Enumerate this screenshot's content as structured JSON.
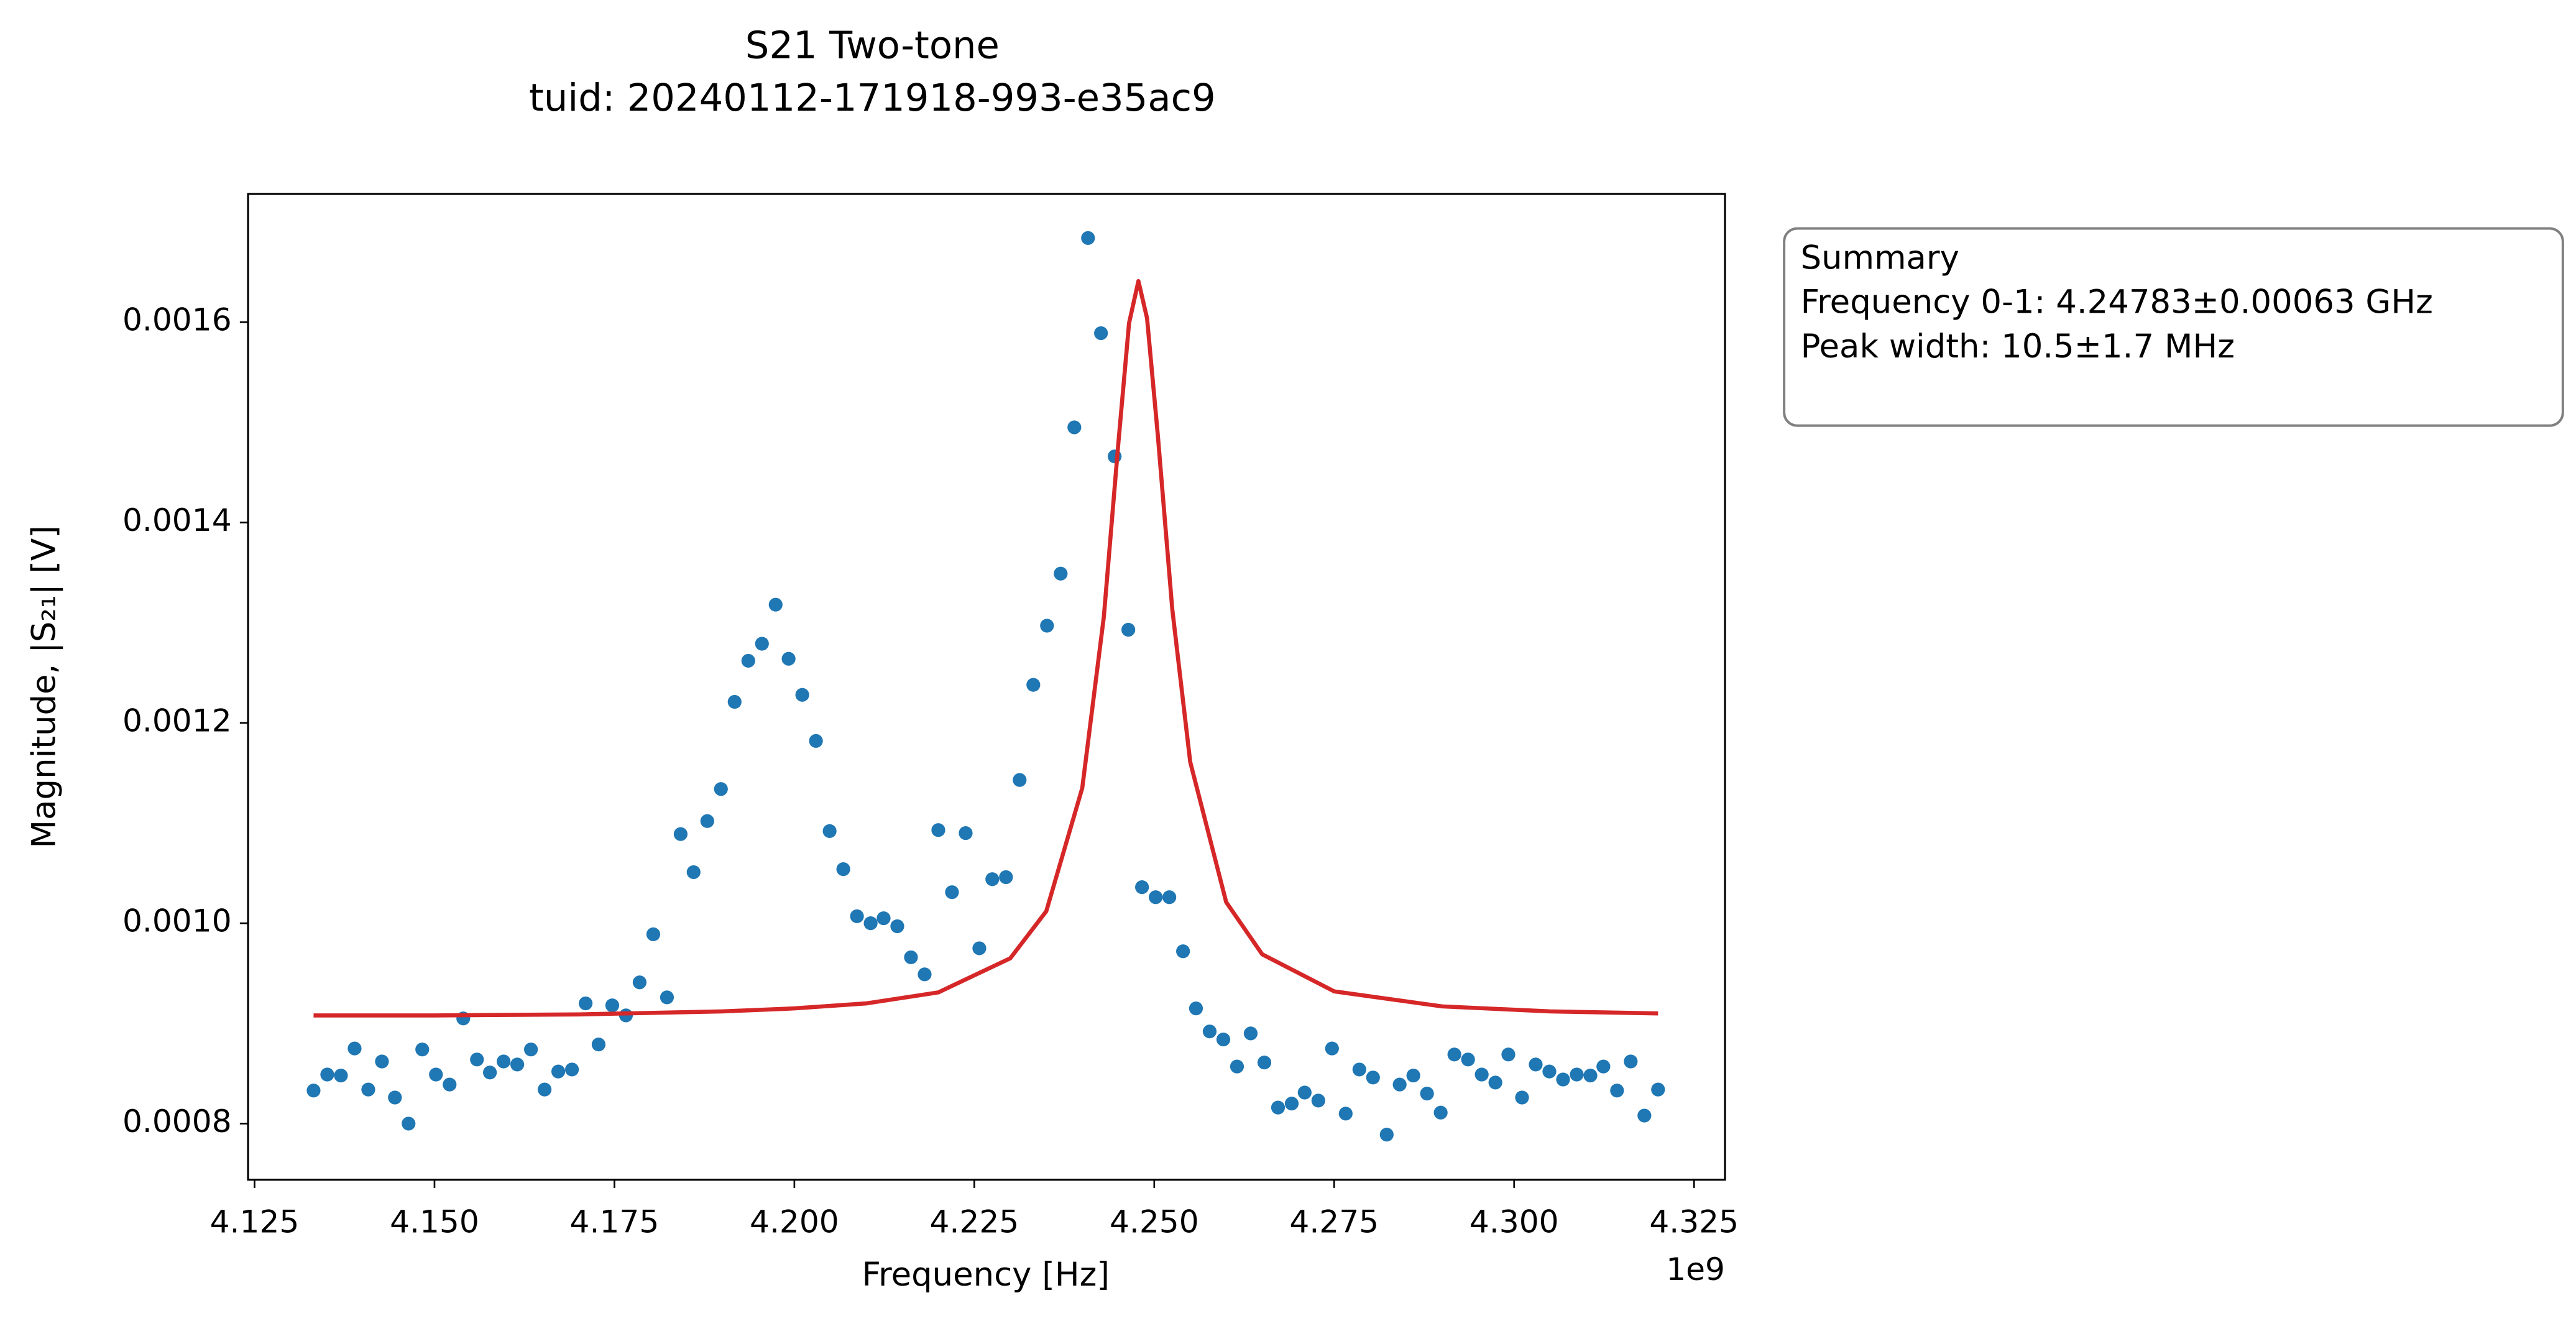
{
  "chart_data": {
    "type": "scatter",
    "title": [
      "S21 Two-tone",
      "tuid: 20240112-171918-993-e35ac9"
    ],
    "x_label": "Frequency [Hz]",
    "y_label": "Magnitude, |S₂₁| [V]",
    "x_offset_label": "1e9",
    "xlim": [
      4.1241,
      4.3293
    ],
    "ylim": [
      0.000744,
      0.001728
    ],
    "xticks": [
      4.125,
      {
        "value": 4.15,
        "label": "4.150"
      },
      4.175,
      {
        "value": 4.2,
        "label": "4.200"
      },
      4.225,
      {
        "value": 4.25,
        "label": "4.250"
      },
      4.275,
      {
        "value": 4.3,
        "label": "4.300"
      },
      4.325
    ],
    "yticks": [
      0.0008,
      {
        "value": 0.001,
        "label": "0.0010"
      },
      0.0012,
      0.0014,
      0.0016
    ],
    "grid": false,
    "x": [
      4.1332,
      4.1351,
      4.137,
      4.1389,
      4.1408,
      4.1427,
      4.1445,
      4.1464,
      4.1483,
      4.1502,
      4.1521,
      4.154,
      4.1559,
      4.1577,
      4.1596,
      4.1615,
      4.1634,
      4.1653,
      4.1672,
      4.1691,
      4.171,
      4.1728,
      4.1747,
      4.1766,
      4.1785,
      4.1804,
      4.1823,
      4.1842,
      4.186,
      4.1879,
      4.1898,
      4.1917,
      4.1936,
      4.1955,
      4.1974,
      4.1992,
      4.2011,
      4.203,
      4.2049,
      4.2068,
      4.2087,
      4.2106,
      4.2124,
      4.2143,
      4.2162,
      4.2181,
      4.22,
      4.2219,
      4.2238,
      4.2257,
      4.2275,
      4.2294,
      4.2313,
      4.2332,
      4.2351,
      4.237,
      4.2389,
      4.2408,
      4.2426,
      4.2445,
      4.2464,
      4.2483,
      4.2502,
      4.2521,
      4.254,
      4.2558,
      4.2577,
      4.2596,
      4.2615,
      4.2634,
      4.2653,
      4.2672,
      4.2691,
      4.2709,
      4.2728,
      4.2747,
      4.2766,
      4.2785,
      4.2804,
      4.2823,
      4.2841,
      4.286,
      4.2879,
      4.2898,
      4.2917,
      4.2936,
      4.2955,
      4.2974,
      4.2992,
      4.3011,
      4.303,
      4.3049,
      4.3068,
      4.3087,
      4.3106,
      4.3124,
      4.3143,
      4.3162,
      4.3181,
      4.32
    ],
    "series": [
      {
        "type": "scatter",
        "color": "#1f77b4",
        "values": [
          0.000833,
          0.000849,
          0.000848,
          0.000875,
          0.000834,
          0.000862,
          0.000826,
          0.0008,
          0.000874,
          0.000849,
          0.000839,
          0.000905,
          0.000864,
          0.000851,
          0.000862,
          0.000859,
          0.000874,
          0.000834,
          0.000852,
          0.000854,
          0.00092,
          0.000879,
          0.000918,
          0.000908,
          0.000941,
          0.000989,
          0.000926,
          0.001089,
          0.001051,
          0.001102,
          0.001134,
          0.001221,
          0.001262,
          0.001279,
          0.001318,
          0.001264,
          0.001228,
          0.001182,
          0.001092,
          0.001054,
          0.001007,
          0.001,
          0.001005,
          0.000997,
          0.000966,
          0.000949,
          0.001093,
          0.001031,
          0.00109,
          0.000975,
          0.001044,
          0.001046,
          0.001143,
          0.001238,
          0.001297,
          0.001349,
          0.001495,
          0.001684,
          0.001589,
          0.001466,
          0.001293,
          0.001036,
          0.001026,
          0.001026,
          0.000972,
          0.000915,
          0.000892,
          0.000884,
          0.000857,
          0.00089,
          0.000861,
          0.000816,
          0.00082,
          0.000831,
          0.000823,
          0.000875,
          0.00081,
          0.000854,
          0.000846,
          0.000789,
          0.000839,
          0.000848,
          0.00083,
          0.000811,
          0.000869,
          0.000864,
          0.000849,
          0.000841,
          0.000869,
          0.000826,
          0.000859,
          0.000852,
          0.000844,
          0.000849,
          0.000848,
          0.000857,
          0.000833,
          0.000862,
          0.000808,
          0.000834
        ]
      },
      {
        "type": "line",
        "color": "#d62728",
        "x": [
          4.1332,
          4.15,
          4.17,
          4.19,
          4.2,
          4.21,
          4.22,
          4.23,
          4.235,
          4.24,
          4.243,
          4.245,
          4.2465,
          4.2478,
          4.249,
          4.2505,
          4.2525,
          4.255,
          4.26,
          4.265,
          4.275,
          4.29,
          4.305,
          4.32
        ],
        "values": [
          0.000908,
          0.000908,
          0.000909,
          0.000912,
          0.000915,
          0.00092,
          0.000931,
          0.000965,
          0.001012,
          0.001135,
          0.001306,
          0.001478,
          0.001599,
          0.001641,
          0.001604,
          0.001487,
          0.001314,
          0.001161,
          0.001021,
          0.000969,
          0.000932,
          0.000917,
          0.000912,
          0.00091
        ]
      }
    ],
    "annotation": [
      "Summary",
      "Frequency 0-1: 4.24783±0.00063 GHz",
      "Peak width: 10.5±1.7 MHz"
    ]
  }
}
